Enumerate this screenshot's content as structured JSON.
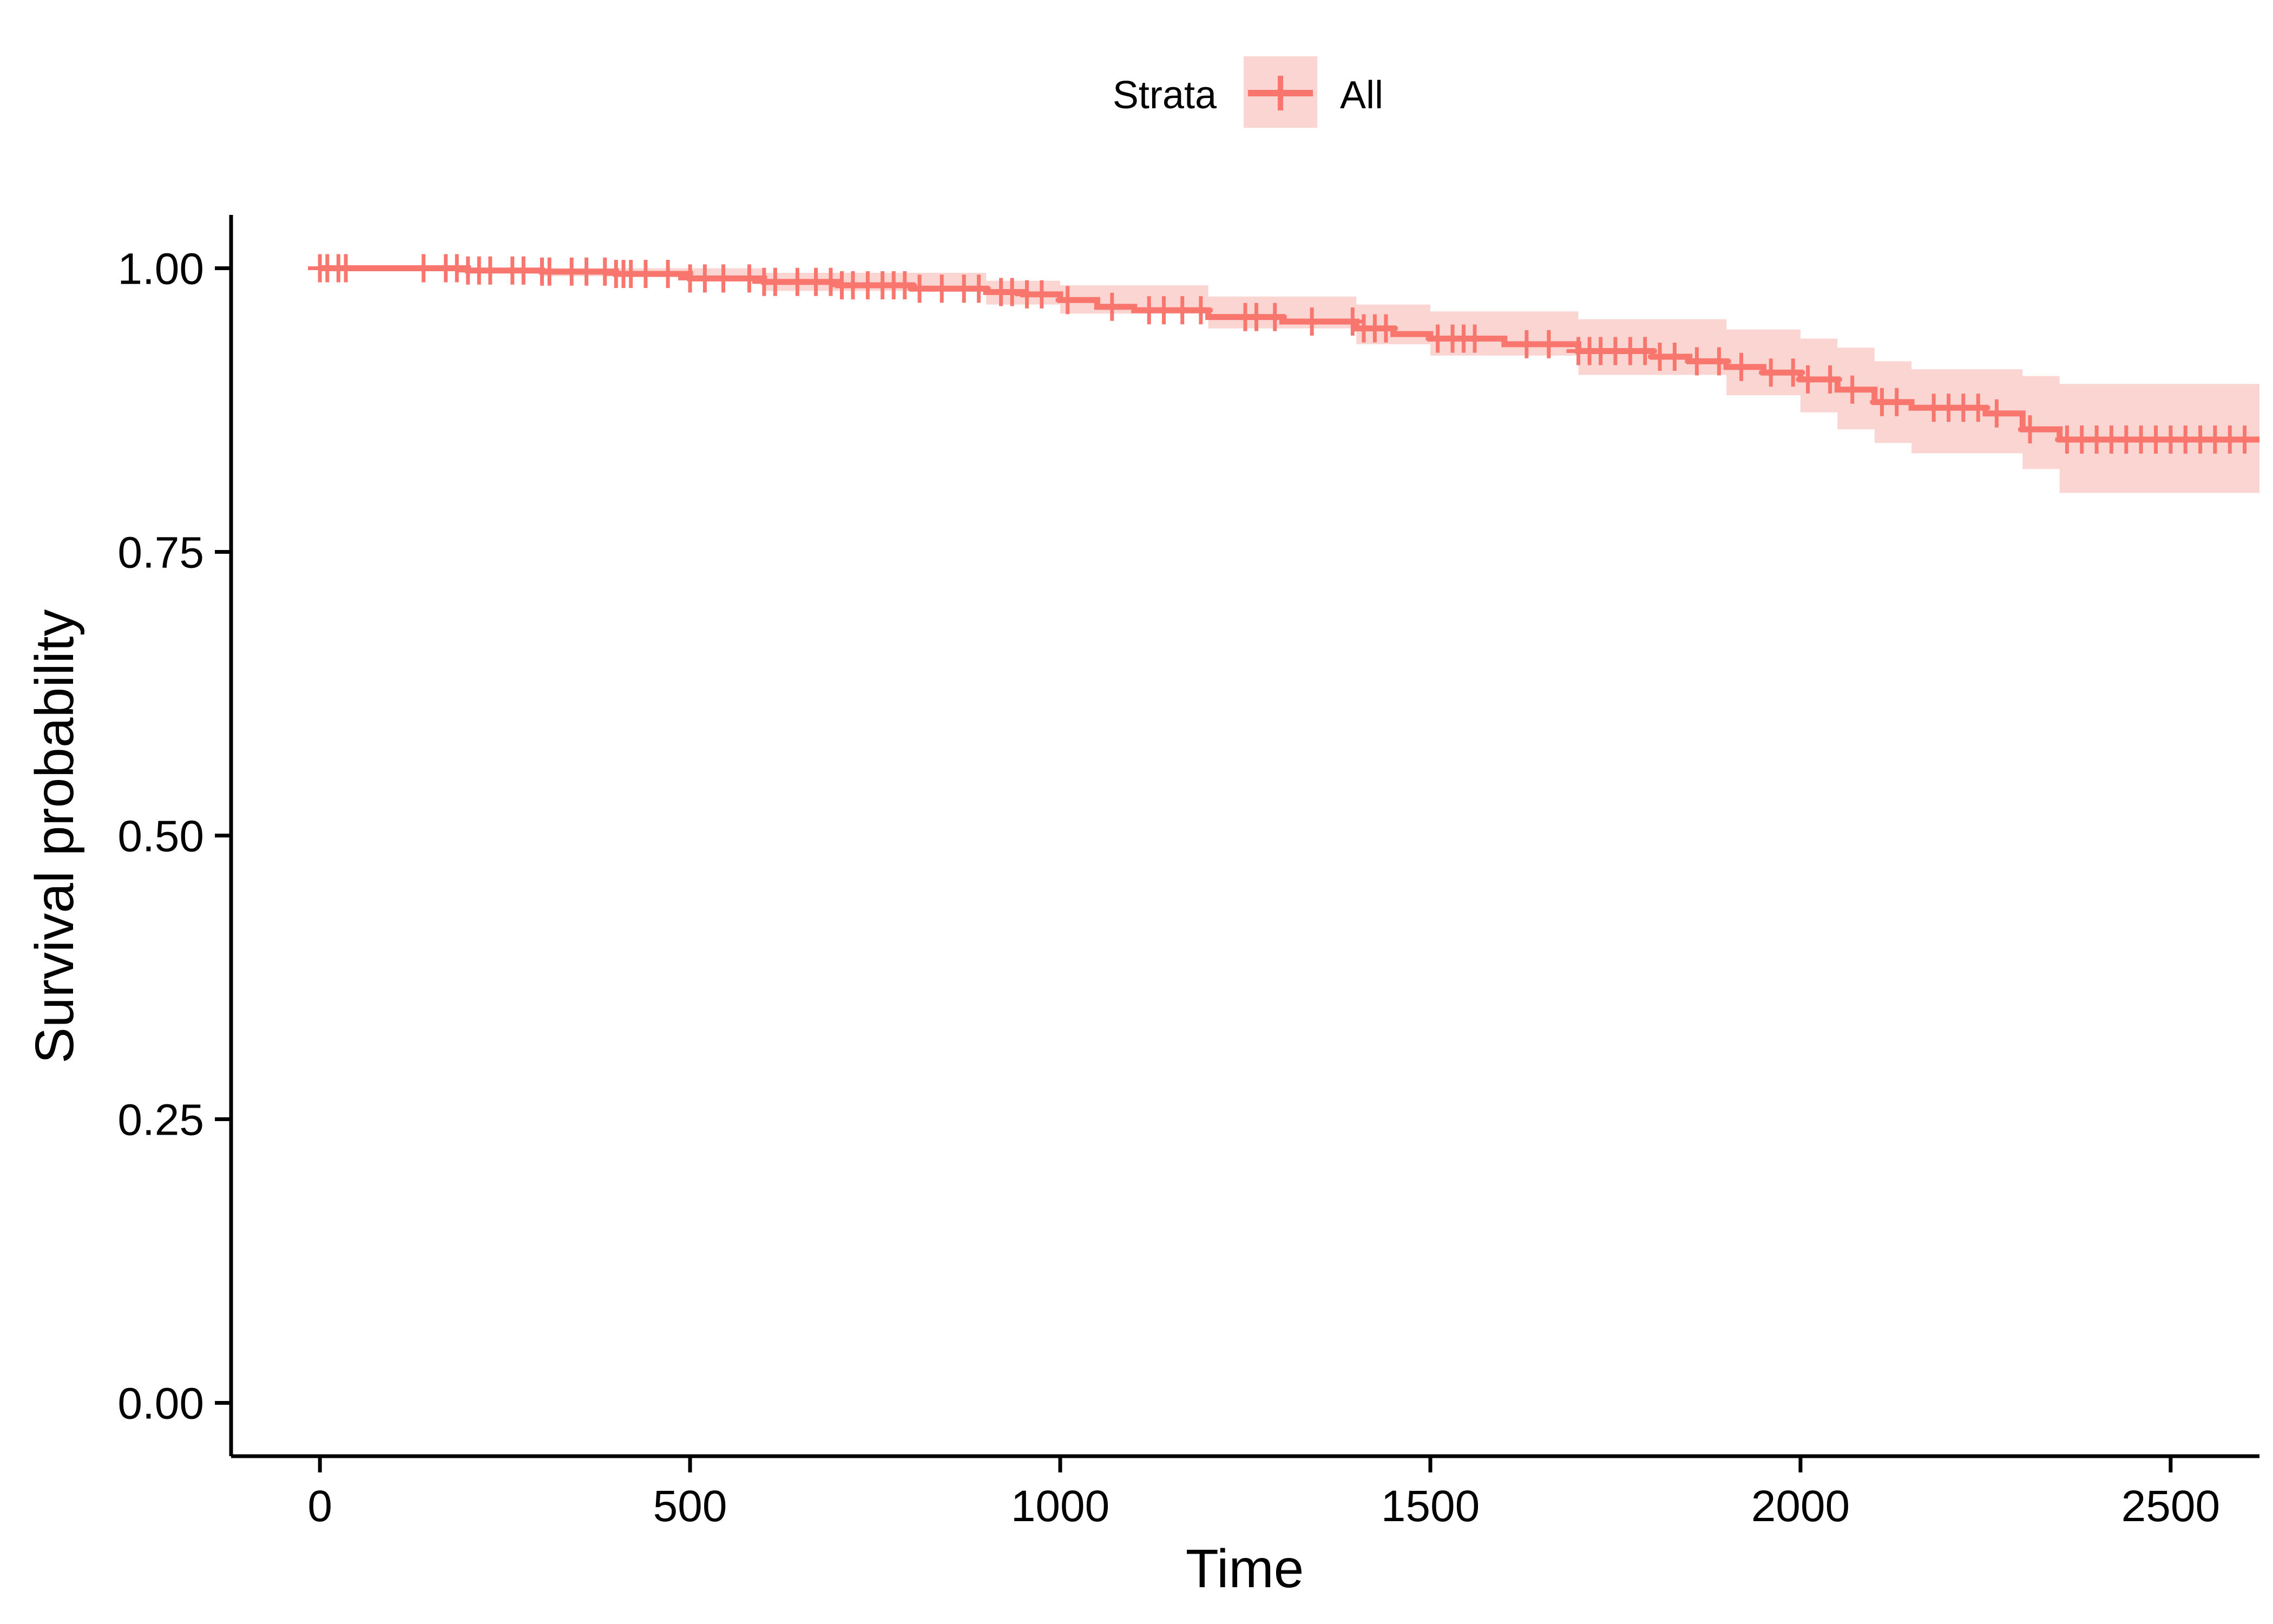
{
  "chart_data": {
    "type": "line",
    "chart_kind": "kaplan-meier survival curve",
    "title": "",
    "xlabel": "Time",
    "ylabel": "Survival probability",
    "xlim": [
      -120,
      2620
    ],
    "ylim": [
      -0.047,
      1.047
    ],
    "x_ticks": [
      0,
      500,
      1000,
      1500,
      2000,
      2500
    ],
    "y_ticks": [
      0.0,
      0.25,
      0.5,
      0.75,
      1.0
    ],
    "x_tick_labels": [
      "0",
      "500",
      "1000",
      "1500",
      "2000",
      "2500"
    ],
    "y_tick_labels": [
      "0.00",
      "0.25",
      "0.50",
      "0.75",
      "1.00"
    ],
    "grid": false,
    "legend": {
      "position": "top",
      "title": "Strata",
      "entries": [
        "All"
      ]
    },
    "colors": {
      "line": "#F8766D",
      "band": "#FBD5D2"
    },
    "series": [
      {
        "name": "All",
        "step_points": [
          [
            0,
            1.0
          ],
          [
            100,
            1.0
          ],
          [
            200,
            0.998
          ],
          [
            300,
            0.997
          ],
          [
            400,
            0.995
          ],
          [
            500,
            0.991
          ],
          [
            600,
            0.988
          ],
          [
            700,
            0.985
          ],
          [
            800,
            0.982
          ],
          [
            900,
            0.979
          ],
          [
            950,
            0.977
          ],
          [
            1000,
            0.972
          ],
          [
            1050,
            0.966
          ],
          [
            1100,
            0.963
          ],
          [
            1200,
            0.957
          ],
          [
            1300,
            0.953
          ],
          [
            1400,
            0.947
          ],
          [
            1450,
            0.942
          ],
          [
            1500,
            0.938
          ],
          [
            1600,
            0.933
          ],
          [
            1700,
            0.927
          ],
          [
            1800,
            0.922
          ],
          [
            1850,
            0.918
          ],
          [
            1900,
            0.913
          ],
          [
            1950,
            0.908
          ],
          [
            2000,
            0.902
          ],
          [
            2050,
            0.893
          ],
          [
            2100,
            0.882
          ],
          [
            2150,
            0.877
          ],
          [
            2250,
            0.872
          ],
          [
            2300,
            0.858
          ],
          [
            2350,
            0.849
          ],
          [
            2620,
            0.849
          ]
        ],
        "ci_upper": [
          [
            0,
            1.0
          ],
          [
            300,
            1.0
          ],
          [
            600,
            0.996
          ],
          [
            900,
            0.989
          ],
          [
            1000,
            0.985
          ],
          [
            1200,
            0.975
          ],
          [
            1400,
            0.968
          ],
          [
            1500,
            0.962
          ],
          [
            1700,
            0.955
          ],
          [
            1900,
            0.946
          ],
          [
            2000,
            0.938
          ],
          [
            2050,
            0.93
          ],
          [
            2100,
            0.918
          ],
          [
            2150,
            0.911
          ],
          [
            2300,
            0.905
          ],
          [
            2350,
            0.898
          ],
          [
            2620,
            0.898
          ]
        ],
        "ci_lower": [
          [
            0,
            1.0
          ],
          [
            300,
            0.993
          ],
          [
            600,
            0.98
          ],
          [
            900,
            0.968
          ],
          [
            1000,
            0.96
          ],
          [
            1200,
            0.947
          ],
          [
            1400,
            0.933
          ],
          [
            1500,
            0.923
          ],
          [
            1700,
            0.906
          ],
          [
            1900,
            0.888
          ],
          [
            2000,
            0.873
          ],
          [
            2050,
            0.858
          ],
          [
            2100,
            0.846
          ],
          [
            2150,
            0.837
          ],
          [
            2300,
            0.823
          ],
          [
            2350,
            0.802
          ],
          [
            2620,
            0.802
          ]
        ],
        "censor_times": [
          0,
          10,
          25,
          35,
          140,
          170,
          185,
          200,
          215,
          230,
          260,
          275,
          300,
          310,
          340,
          360,
          385,
          400,
          410,
          420,
          440,
          470,
          500,
          520,
          545,
          580,
          600,
          615,
          645,
          670,
          690,
          705,
          720,
          740,
          760,
          775,
          790,
          810,
          840,
          870,
          890,
          920,
          935,
          955,
          975,
          1010,
          1070,
          1120,
          1140,
          1165,
          1190,
          1250,
          1265,
          1290,
          1340,
          1395,
          1410,
          1425,
          1440,
          1510,
          1530,
          1545,
          1560,
          1630,
          1660,
          1700,
          1715,
          1730,
          1750,
          1770,
          1790,
          1810,
          1830,
          1860,
          1890,
          1920,
          1960,
          1990,
          2010,
          2040,
          2070,
          2110,
          2130,
          2180,
          2200,
          2220,
          2240,
          2265,
          2310,
          2360,
          2380,
          2400,
          2420,
          2440,
          2460,
          2480,
          2500,
          2520,
          2540,
          2560,
          2580,
          2600
        ]
      }
    ]
  }
}
